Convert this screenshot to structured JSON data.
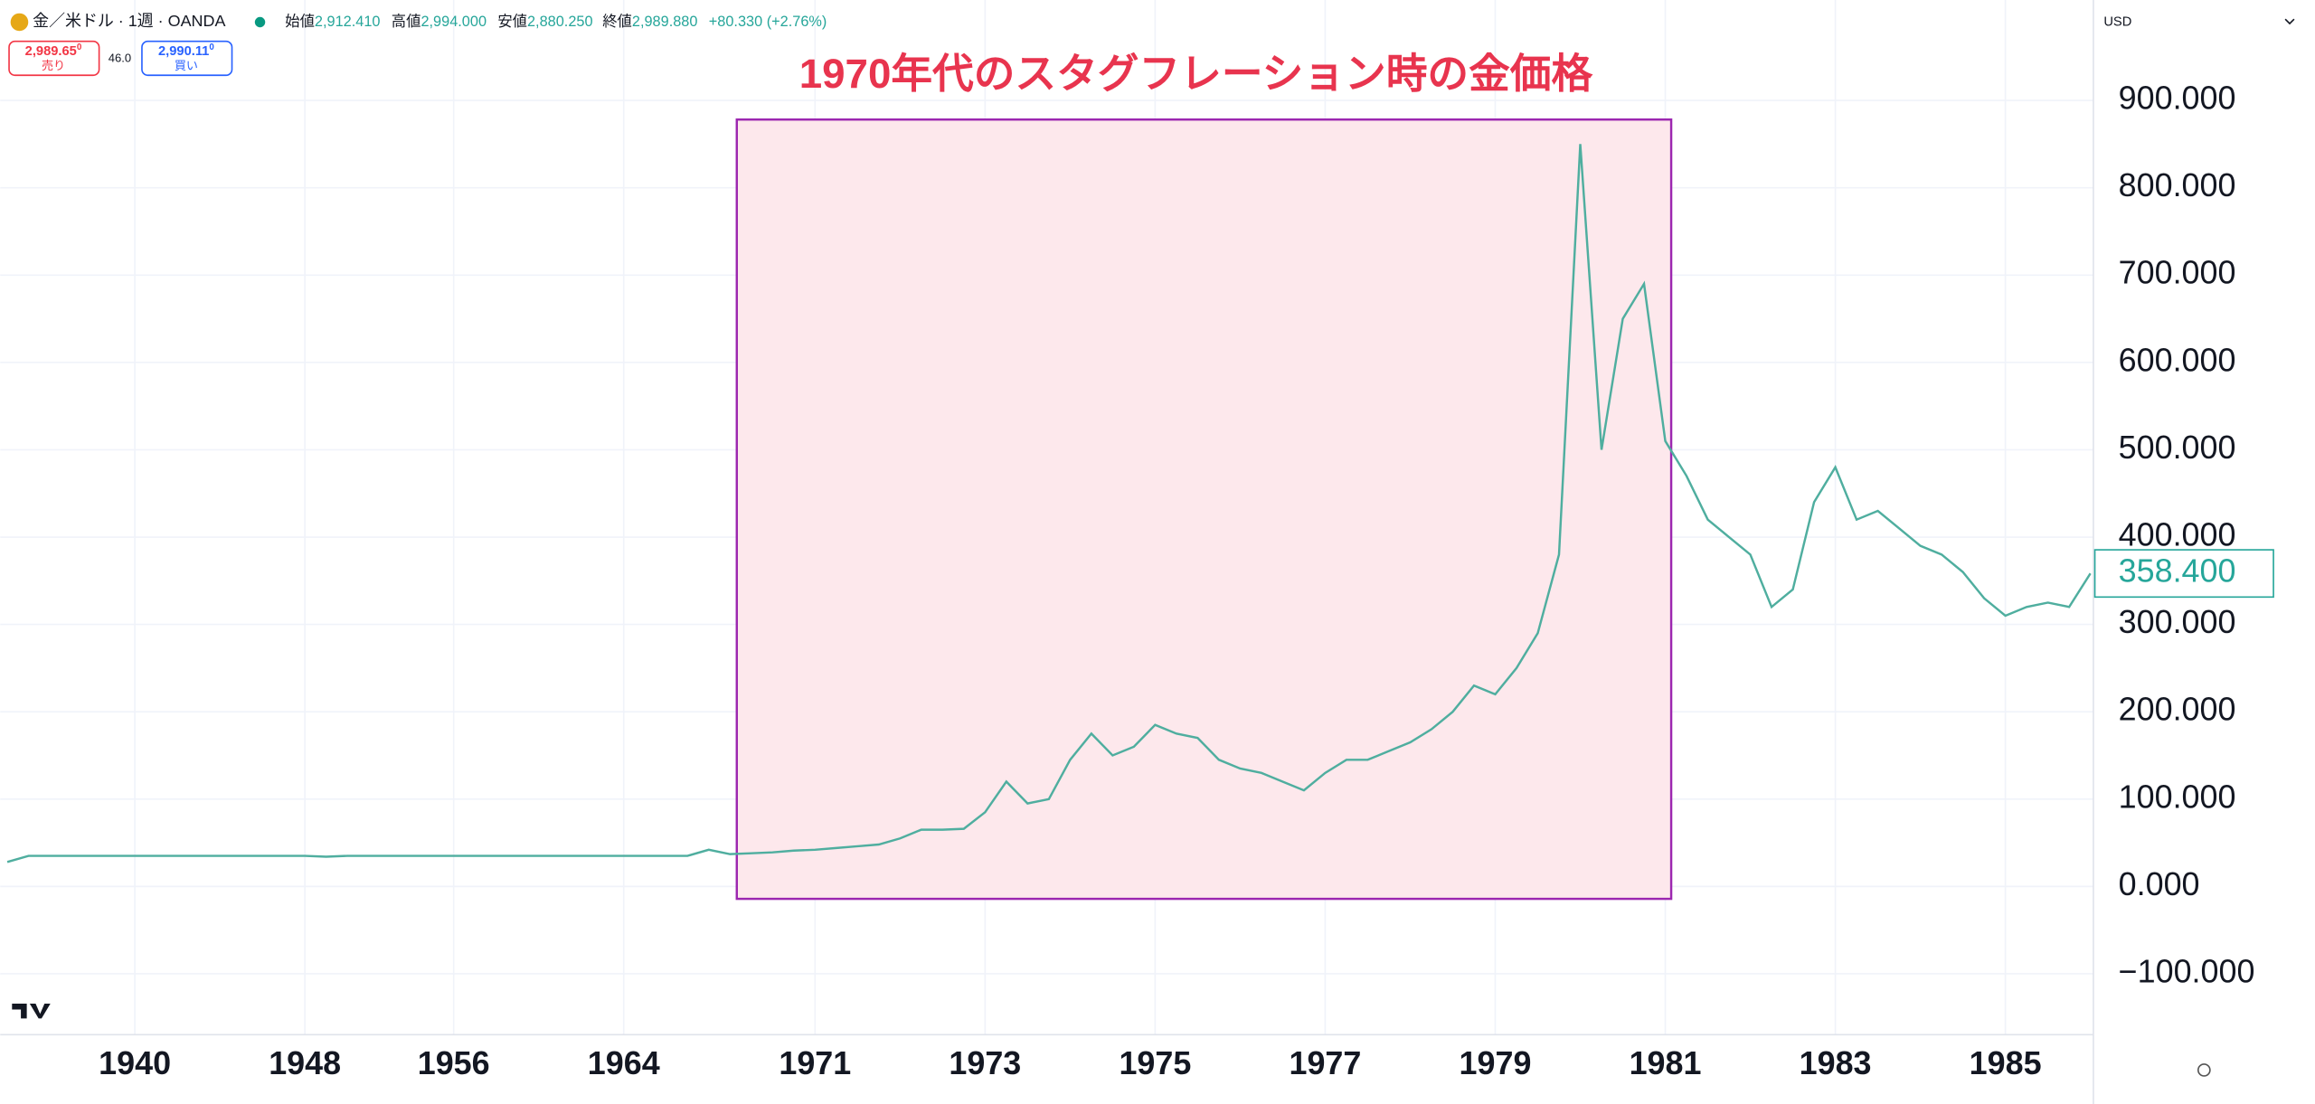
{
  "toolbar": {
    "symbol": "金／米ドル · 1週 · OANDA",
    "open_label": "始値",
    "open": "2,912.410",
    "high_label": "高値",
    "high": "2,994.000",
    "low_label": "安値",
    "low": "2,880.250",
    "close_label": "終値",
    "close": "2,989.880",
    "change": "+80.330 (+2.76%)",
    "sell_price": "2,989.65",
    "sell_price_sup": "0",
    "sell_label": "売り",
    "spread": "46.0",
    "buy_price": "2,990.11",
    "buy_price_sup": "0",
    "buy_label": "買い",
    "currency": "USD"
  },
  "chart_data": {
    "type": "line",
    "title": "1970年代のスタグフレーション時の金価格",
    "color": "#4fae9f",
    "grid": true,
    "categories": [
      null,
      null,
      null,
      null,
      null,
      null,
      "1940",
      null,
      null,
      null,
      null,
      null,
      null,
      null,
      "1948",
      null,
      null,
      null,
      null,
      null,
      null,
      "1956",
      null,
      null,
      null,
      null,
      null,
      null,
      null,
      "1964",
      null,
      null,
      null,
      null,
      null,
      null,
      null,
      null,
      "1971",
      null,
      null,
      null,
      null,
      null,
      null,
      null,
      "1973",
      null,
      null,
      null,
      null,
      null,
      null,
      null,
      "1975",
      null,
      null,
      null,
      null,
      null,
      null,
      null,
      "1977",
      null,
      null,
      null,
      null,
      null,
      null,
      null,
      "1979",
      null,
      null,
      null,
      null,
      null,
      null,
      null,
      "1981",
      null,
      null,
      null,
      null,
      null,
      null,
      null,
      "1983",
      null,
      null,
      null,
      null,
      null,
      null,
      null,
      "1985",
      null,
      null,
      null,
      null
    ],
    "values": [
      28,
      35,
      35,
      35,
      35,
      35,
      35,
      35,
      35,
      35,
      35,
      35,
      35,
      35,
      35,
      34,
      35,
      35,
      35,
      35,
      35,
      35,
      35,
      35,
      35,
      35,
      35,
      35,
      35,
      35,
      35,
      35,
      35,
      42,
      37,
      38,
      39,
      41,
      42,
      44,
      46,
      48,
      55,
      65,
      65,
      66,
      85,
      120,
      95,
      100,
      145,
      175,
      150,
      160,
      185,
      175,
      170,
      145,
      135,
      130,
      120,
      110,
      130,
      145,
      145,
      155,
      165,
      180,
      200,
      230,
      220,
      250,
      290,
      380,
      850,
      500,
      650,
      690,
      510,
      470,
      420,
      400,
      380,
      320,
      340,
      440,
      480,
      420,
      430,
      410,
      390,
      380,
      360,
      330,
      310,
      320,
      325,
      320,
      358.4
    ],
    "ylim": [
      -168,
      1015
    ],
    "yticks": [
      {
        "value": -100,
        "label": "−100.000"
      },
      {
        "value": 0,
        "label": "0.000"
      },
      {
        "value": 100,
        "label": "100.000"
      },
      {
        "value": 200,
        "label": "200.000"
      },
      {
        "value": 300,
        "label": "300.000"
      },
      {
        "value": 400,
        "label": "400.000"
      },
      {
        "value": 500,
        "label": "500.000"
      },
      {
        "value": 600,
        "label": "600.000"
      },
      {
        "value": 700,
        "label": "700.000"
      },
      {
        "value": 800,
        "label": "800.000"
      },
      {
        "value": 900,
        "label": "900.000"
      }
    ],
    "last_price": {
      "value": 358.4,
      "label": "358.400"
    }
  }
}
